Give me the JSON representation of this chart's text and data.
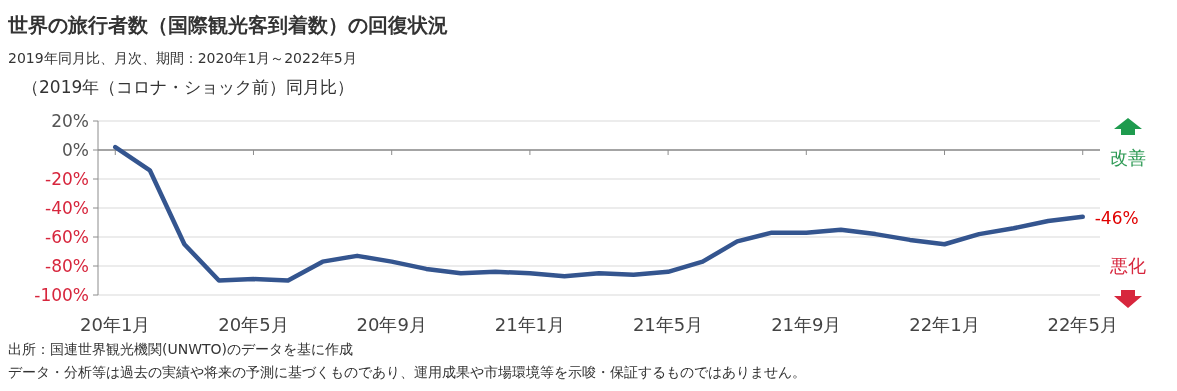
{
  "chart_data": {
    "type": "line",
    "title": "世界の旅行者数（国際観光客到着数）の回復状況",
    "subtitle": "2019年同月比、月次、期間：2020年1月～2022年5月",
    "ylabel": "（2019年（コロナ・ショック前）同月比）",
    "categories": [
      "20年1月",
      null,
      null,
      null,
      "20年5月",
      null,
      null,
      null,
      "20年9月",
      null,
      null,
      null,
      "21年1月",
      null,
      null,
      null,
      "21年5月",
      null,
      null,
      null,
      "21年9月",
      null,
      null,
      null,
      "22年1月",
      null,
      null,
      null,
      "22年5月"
    ],
    "series": [
      {
        "color": "#34558f",
        "values": [
          2,
          -14,
          -65,
          -90,
          -89,
          -90,
          -77,
          -73,
          -77,
          -82,
          -85,
          -84,
          -85,
          -87,
          -85,
          -86,
          -84,
          -77,
          -63,
          -57,
          -57,
          -55,
          -58,
          -62,
          -65,
          -58,
          -54,
          -49,
          -46
        ]
      }
    ],
    "ylim": [
      -100,
      20
    ],
    "yticks": [
      {
        "value": 20,
        "label": "20%"
      },
      {
        "value": 0,
        "label": "0%"
      },
      {
        "value": -20,
        "label": "-20%"
      },
      {
        "value": -40,
        "label": "-40%"
      },
      {
        "value": -60,
        "label": "-60%"
      },
      {
        "value": -80,
        "label": "-80%"
      },
      {
        "value": -100,
        "label": "-100%"
      }
    ],
    "grid": "y",
    "marker": "none",
    "line_style": "solid",
    "ref_lines": [
      {
        "axis": "y",
        "value": 0,
        "color": "#8c8c8c"
      }
    ],
    "annotations": [
      {
        "text": "-46%",
        "x": "22年5月",
        "y": -46
      },
      "改善",
      "悪化",
      "出所：国連世界観光機関(UNWTO)のデータを基に作成",
      "データ・分析等は過去の実績や将来の予測に基づくものであり、運用成果や市場環境等を示唆・保証するものではありません。"
    ]
  }
}
